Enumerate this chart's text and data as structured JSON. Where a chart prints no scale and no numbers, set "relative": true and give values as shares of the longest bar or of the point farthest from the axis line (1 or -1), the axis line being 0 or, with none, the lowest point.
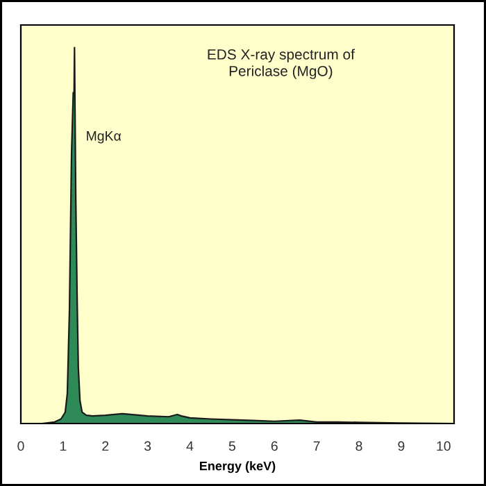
{
  "chart_data": {
    "type": "area",
    "title": "EDS X-ray spectrum of\nPericlase (MgO)",
    "xlabel": "Energy (keV)",
    "relative": true,
    "xlim": [
      0,
      10.25
    ],
    "xticks": [
      0,
      1,
      2,
      3,
      4,
      5,
      6,
      7,
      8,
      9,
      10
    ],
    "grid": false,
    "legend": false,
    "annotations": [
      "MgKα"
    ],
    "series": [
      {
        "color": "#2e8b57",
        "x": [
          0,
          0.5,
          0.8,
          0.95,
          1.05,
          1.1,
          1.15,
          1.2,
          1.24,
          1.26,
          1.27,
          1.28,
          1.3,
          1.33,
          1.36,
          1.4,
          1.45,
          1.55,
          1.7,
          2.0,
          2.4,
          2.5,
          3.0,
          3.5,
          3.7,
          3.8,
          4.0,
          4.5,
          5.0,
          5.5,
          6.0,
          6.6,
          7.0,
          7.5,
          8.0,
          9.0,
          10.25
        ],
        "values": [
          0,
          0,
          0.004,
          0.012,
          0.03,
          0.08,
          0.3,
          0.72,
          0.88,
          0.88,
          1.0,
          0.86,
          0.6,
          0.35,
          0.15,
          0.06,
          0.03,
          0.022,
          0.02,
          0.022,
          0.026,
          0.025,
          0.02,
          0.018,
          0.024,
          0.02,
          0.015,
          0.012,
          0.01,
          0.008,
          0.006,
          0.009,
          0.004,
          0.004,
          0.003,
          0.001,
          0
        ]
      }
    ]
  }
}
